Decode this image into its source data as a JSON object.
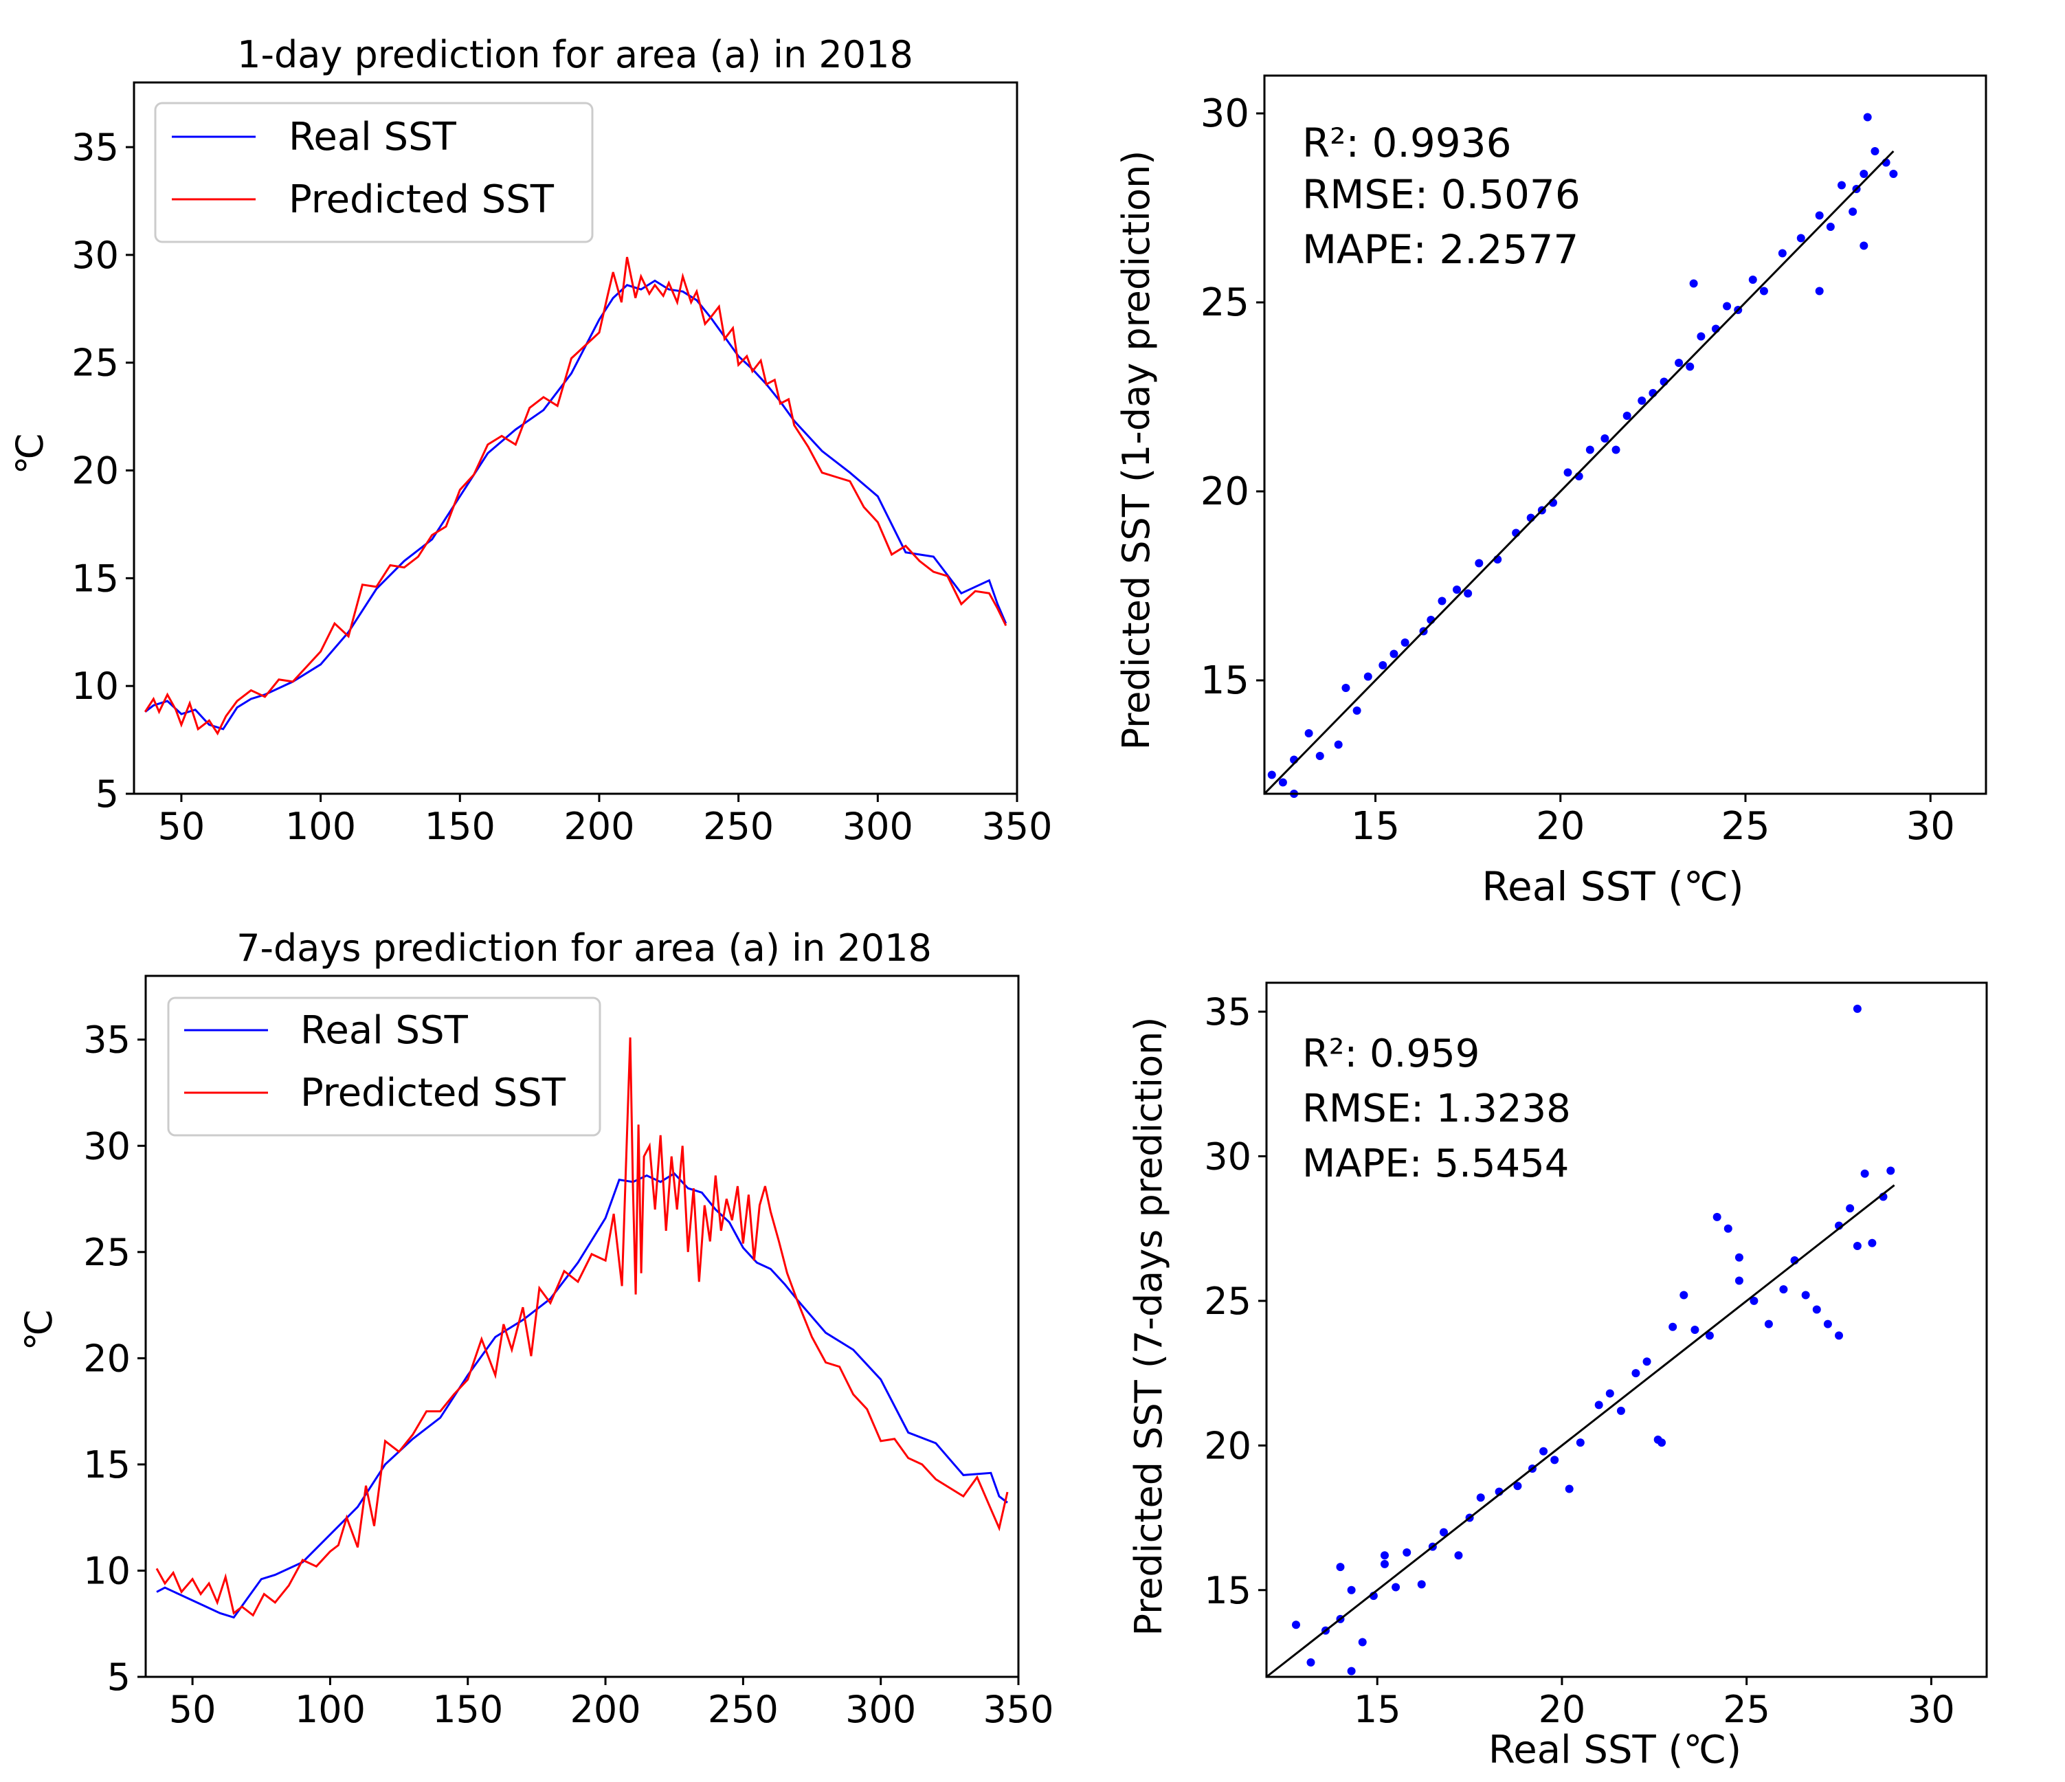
{
  "colors": {
    "real": "#0000ff",
    "predicted": "#ff0000",
    "fit": "#000000",
    "axis": "#000000"
  },
  "chart_data": [
    {
      "type": "line",
      "title": "1-day prediction for area (a) in 2018",
      "xlabel": "",
      "ylabel": "℃",
      "xlim": [
        33,
        350
      ],
      "ylim": [
        5,
        38
      ],
      "xticks": [
        50,
        100,
        150,
        200,
        250,
        300,
        350
      ],
      "yticks": [
        5,
        10,
        15,
        20,
        25,
        30,
        35
      ],
      "legend": {
        "position": "top-left",
        "entries": [
          "Real SST",
          "Predicted SST"
        ]
      },
      "series": [
        {
          "name": "Real SST",
          "x": [
            37,
            40,
            45,
            50,
            55,
            60,
            65,
            70,
            75,
            80,
            90,
            100,
            110,
            120,
            130,
            140,
            150,
            160,
            170,
            180,
            190,
            200,
            205,
            210,
            215,
            220,
            225,
            230,
            235,
            240,
            245,
            250,
            255,
            260,
            265,
            270,
            280,
            290,
            300,
            310,
            320,
            330,
            340,
            343,
            346
          ],
          "y": [
            8.8,
            9.1,
            9.3,
            8.7,
            8.9,
            8.2,
            8.0,
            9.0,
            9.4,
            9.6,
            10.2,
            11.0,
            12.5,
            14.5,
            15.8,
            16.8,
            18.8,
            20.8,
            21.9,
            22.8,
            24.5,
            27.0,
            28.0,
            28.6,
            28.4,
            28.8,
            28.4,
            28.3,
            27.9,
            27.1,
            26.2,
            25.3,
            24.7,
            24.0,
            23.2,
            22.3,
            20.9,
            19.9,
            18.8,
            16.2,
            16.0,
            14.3,
            14.9,
            13.8,
            12.9
          ]
        },
        {
          "name": "Predicted SST",
          "x": [
            37,
            40,
            42,
            45,
            48,
            50,
            53,
            56,
            60,
            63,
            66,
            70,
            75,
            80,
            85,
            90,
            95,
            100,
            105,
            110,
            115,
            120,
            125,
            130,
            135,
            140,
            145,
            150,
            155,
            160,
            165,
            170,
            175,
            180,
            185,
            190,
            195,
            200,
            203,
            205,
            208,
            210,
            213,
            215,
            218,
            220,
            223,
            225,
            228,
            230,
            233,
            235,
            238,
            240,
            243,
            245,
            248,
            250,
            253,
            255,
            258,
            260,
            263,
            265,
            268,
            270,
            275,
            280,
            285,
            290,
            295,
            300,
            305,
            310,
            315,
            320,
            325,
            330,
            335,
            340,
            343,
            346
          ],
          "y": [
            8.8,
            9.4,
            8.8,
            9.6,
            8.9,
            8.2,
            9.2,
            8.0,
            8.4,
            7.8,
            8.6,
            9.3,
            9.8,
            9.5,
            10.3,
            10.2,
            10.9,
            11.6,
            12.9,
            12.3,
            14.7,
            14.6,
            15.6,
            15.5,
            16.0,
            17.0,
            17.4,
            19.1,
            19.8,
            21.2,
            21.6,
            21.2,
            22.9,
            23.4,
            23.0,
            25.2,
            25.8,
            26.4,
            28.1,
            29.2,
            27.8,
            29.9,
            28.0,
            29.0,
            28.2,
            28.6,
            28.1,
            28.7,
            27.8,
            29.0,
            27.8,
            28.3,
            26.8,
            27.1,
            27.6,
            26.1,
            26.6,
            24.9,
            25.3,
            24.6,
            25.1,
            24.0,
            24.2,
            23.1,
            23.3,
            22.1,
            21.1,
            19.9,
            19.7,
            19.5,
            18.3,
            17.6,
            16.1,
            16.5,
            15.8,
            15.3,
            15.1,
            13.8,
            14.4,
            14.3,
            13.6,
            12.8
          ]
        }
      ]
    },
    {
      "type": "scatter",
      "title": "",
      "xlabel": "Real SST (℃)",
      "ylabel": "Predicted SST (1-day prediction)",
      "xlim": [
        12,
        31.5
      ],
      "ylim": [
        12,
        31
      ],
      "xticks": [
        15,
        20,
        25,
        30
      ],
      "yticks": [
        15,
        20,
        25,
        30
      ],
      "annotations": [
        "R²: 0.9936",
        "RMSE: 0.5076",
        "MAPE: 2.2577"
      ],
      "metrics": {
        "r2": 0.9936,
        "rmse": 0.5076,
        "mape": 2.2577
      },
      "fit_line": {
        "x": [
          12,
          29
        ],
        "y": [
          12,
          29
        ]
      },
      "points": {
        "x": [
          12.2,
          12.5,
          12.8,
          13.2,
          13.5,
          14.2,
          14.5,
          14.8,
          15.2,
          15.5,
          15.8,
          16.3,
          16.5,
          16.8,
          17.2,
          17.5,
          17.8,
          18.3,
          18.8,
          19.2,
          19.5,
          19.8,
          20.2,
          20.5,
          20.8,
          21.2,
          21.5,
          21.8,
          22.2,
          22.5,
          22.8,
          23.2,
          23.5,
          23.8,
          24.2,
          24.5,
          24.8,
          25.2,
          25.5,
          26.0,
          26.5,
          27.0,
          27.3,
          27.6,
          27.9,
          28.0,
          28.2,
          28.3,
          28.5,
          28.8,
          29.0,
          27.0,
          28.2,
          23.6,
          14.0,
          12.8
        ],
        "y": [
          12.5,
          12.3,
          12.9,
          13.6,
          13.0,
          14.8,
          14.2,
          15.1,
          15.4,
          15.7,
          16.0,
          16.3,
          16.6,
          17.1,
          17.4,
          17.3,
          18.1,
          18.2,
          18.9,
          19.3,
          19.5,
          19.7,
          20.5,
          20.4,
          21.1,
          21.4,
          21.1,
          22.0,
          22.4,
          22.6,
          22.9,
          23.4,
          23.3,
          24.1,
          24.3,
          24.9,
          24.8,
          25.6,
          25.3,
          26.3,
          26.7,
          27.3,
          27.0,
          28.1,
          27.4,
          28.0,
          28.4,
          29.9,
          29.0,
          28.7,
          28.4,
          25.3,
          26.5,
          25.5,
          13.3,
          12.0
        ]
      }
    },
    {
      "type": "line",
      "title": "7-days prediction for area (a) in 2018",
      "xlabel": "",
      "ylabel": "℃",
      "xlim": [
        33,
        350
      ],
      "ylim": [
        5,
        38
      ],
      "xticks": [
        50,
        100,
        150,
        200,
        250,
        300,
        350
      ],
      "yticks": [
        5,
        10,
        15,
        20,
        25,
        30,
        35
      ],
      "legend": {
        "position": "top-left",
        "entries": [
          "Real SST",
          "Predicted SST"
        ]
      },
      "series": [
        {
          "name": "Real SST",
          "x": [
            37,
            40,
            45,
            50,
            55,
            60,
            65,
            70,
            75,
            80,
            90,
            100,
            110,
            120,
            130,
            140,
            150,
            160,
            170,
            180,
            190,
            200,
            205,
            210,
            215,
            220,
            225,
            230,
            235,
            240,
            245,
            250,
            255,
            260,
            265,
            270,
            280,
            290,
            300,
            310,
            320,
            330,
            340,
            343,
            346
          ],
          "y": [
            9.0,
            9.2,
            8.9,
            8.6,
            8.3,
            8.0,
            7.8,
            8.7,
            9.6,
            9.8,
            10.4,
            11.7,
            13.0,
            15.0,
            16.2,
            17.2,
            19.2,
            21.0,
            21.8,
            22.8,
            24.5,
            26.6,
            28.4,
            28.3,
            28.6,
            28.3,
            28.7,
            28.0,
            27.8,
            27.0,
            26.4,
            25.2,
            24.5,
            24.2,
            23.5,
            22.7,
            21.2,
            20.4,
            19.0,
            16.5,
            16.0,
            14.5,
            14.6,
            13.5,
            13.2
          ]
        },
        {
          "name": "Predicted SST",
          "x": [
            37,
            40,
            43,
            46,
            50,
            53,
            56,
            59,
            62,
            65,
            68,
            72,
            76,
            80,
            85,
            90,
            95,
            100,
            103,
            106,
            110,
            113,
            116,
            120,
            125,
            130,
            135,
            140,
            145,
            150,
            155,
            160,
            163,
            166,
            170,
            173,
            176,
            180,
            185,
            190,
            195,
            200,
            203,
            206,
            209,
            210,
            211,
            212,
            213,
            214,
            216,
            218,
            220,
            222,
            224,
            226,
            228,
            230,
            232,
            234,
            236,
            238,
            240,
            242,
            244,
            246,
            248,
            250,
            252,
            254,
            256,
            258,
            260,
            263,
            266,
            270,
            275,
            280,
            285,
            290,
            295,
            300,
            305,
            310,
            315,
            320,
            325,
            330,
            335,
            340,
            343,
            346
          ],
          "y": [
            10.1,
            9.4,
            9.9,
            9.0,
            9.6,
            8.9,
            9.4,
            8.5,
            9.7,
            8.0,
            8.3,
            7.9,
            8.9,
            8.5,
            9.3,
            10.5,
            10.2,
            10.9,
            11.2,
            12.5,
            11.1,
            14.0,
            12.1,
            16.1,
            15.6,
            16.4,
            17.5,
            17.5,
            18.3,
            19.0,
            20.9,
            19.2,
            21.6,
            20.4,
            22.4,
            20.1,
            23.3,
            22.6,
            24.1,
            23.6,
            24.9,
            24.6,
            26.8,
            23.4,
            35.1,
            28.0,
            23.0,
            31.0,
            24.0,
            29.5,
            30.0,
            27.0,
            30.5,
            26.0,
            29.5,
            27.0,
            30.0,
            25.0,
            28.0,
            23.6,
            27.2,
            25.5,
            28.6,
            26.0,
            27.5,
            26.5,
            28.1,
            25.4,
            27.7,
            24.6,
            27.2,
            28.1,
            26.9,
            25.5,
            24.0,
            22.6,
            21.0,
            19.8,
            19.6,
            18.3,
            17.6,
            16.1,
            16.2,
            15.3,
            15.0,
            14.3,
            13.9,
            13.5,
            14.4,
            12.9,
            12.0,
            13.7
          ]
        }
      ]
    },
    {
      "type": "scatter",
      "title": "",
      "xlabel": "Real SST (℃)",
      "ylabel": "Predicted SST (7-days prediction)",
      "xlim": [
        12,
        31.5
      ],
      "ylim": [
        12,
        36
      ],
      "xticks": [
        15,
        20,
        25,
        30
      ],
      "yticks": [
        15,
        20,
        25,
        30,
        35
      ],
      "annotations": [
        "R²: 0.959",
        "RMSE: 1.3238",
        "MAPE: 5.5454"
      ],
      "metrics": {
        "r2": 0.959,
        "rmse": 1.3238,
        "mape": 5.5454
      },
      "fit_line": {
        "x": [
          12,
          29
        ],
        "y": [
          12,
          29
        ]
      },
      "points": {
        "x": [
          12.8,
          13.2,
          13.6,
          14.0,
          14.3,
          14.6,
          14.9,
          15.2,
          15.5,
          15.8,
          16.2,
          16.5,
          16.8,
          17.2,
          17.5,
          17.8,
          18.3,
          18.8,
          19.2,
          19.5,
          19.8,
          20.2,
          20.5,
          21.0,
          21.3,
          21.6,
          22.0,
          22.3,
          22.7,
          23.0,
          23.3,
          23.6,
          24.0,
          24.2,
          24.5,
          24.8,
          25.2,
          25.6,
          26.0,
          26.3,
          26.6,
          26.9,
          27.2,
          27.5,
          27.8,
          28.0,
          28.2,
          28.4,
          28.7,
          28.9,
          28.0,
          27.5,
          24.8,
          22.6,
          14.3,
          15.2,
          14.0
        ],
        "y": [
          13.8,
          12.5,
          13.6,
          14.0,
          15.0,
          13.2,
          14.8,
          15.9,
          15.1,
          16.3,
          15.2,
          16.5,
          17.0,
          16.2,
          17.5,
          18.2,
          18.4,
          18.6,
          19.2,
          19.8,
          19.5,
          18.5,
          20.1,
          21.4,
          21.8,
          21.2,
          22.5,
          22.9,
          20.1,
          24.1,
          25.2,
          24.0,
          23.8,
          27.9,
          27.5,
          25.7,
          25.0,
          24.2,
          25.4,
          26.4,
          25.2,
          24.7,
          24.2,
          27.6,
          28.2,
          26.9,
          29.4,
          27.0,
          28.6,
          29.5,
          35.1,
          23.8,
          26.5,
          20.2,
          12.2,
          16.2,
          15.8
        ]
      }
    }
  ]
}
